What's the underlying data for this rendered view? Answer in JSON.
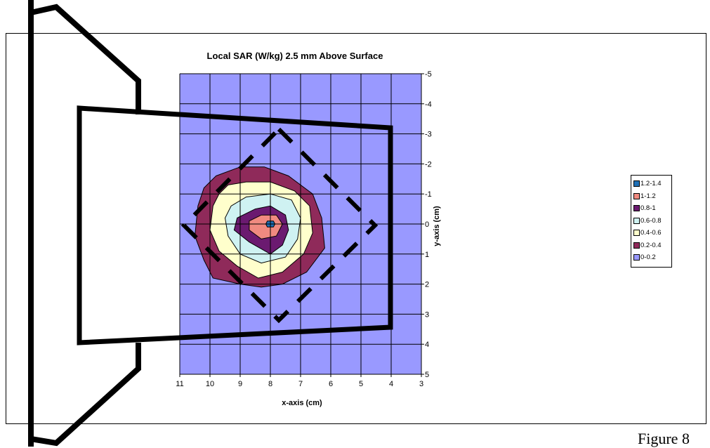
{
  "chart_data": {
    "type": "contour",
    "title": "Local SAR (W/kg) 2.5 mm Above Surface",
    "xlabel": "x-axis (cm)",
    "ylabel": "y-axis (cm)",
    "xlim": [
      11,
      3
    ],
    "ylim": [
      -5,
      5
    ],
    "x_ticks": [
      "11",
      "10",
      "9",
      "8",
      "7",
      "6",
      "5",
      "4",
      "3"
    ],
    "y_ticks": [
      "-5",
      "-4",
      "-3",
      "-2",
      "-1",
      "0",
      "1",
      "2",
      "3",
      "4",
      "5"
    ],
    "grid": true,
    "legend_position": "right",
    "levels": [
      {
        "label": "1.2-1.4",
        "color": "#1f6fb5"
      },
      {
        "label": "1-1.2",
        "color": "#f08a80"
      },
      {
        "label": "0.8-1",
        "color": "#6b1a70"
      },
      {
        "label": "0.6-0.8",
        "color": "#cff2f2"
      },
      {
        "label": "0.4-0.6",
        "color": "#ffffcc"
      },
      {
        "label": "0.2-0.4",
        "color": "#8f2a5a"
      },
      {
        "label": "0-0.2",
        "color": "#9999ff"
      }
    ],
    "peak": {
      "x": 8,
      "y": 0,
      "level": "1.2-1.4"
    },
    "contours": [
      {
        "level": "0.2-0.4",
        "points": [
          [
            9.8,
            -1.6
          ],
          [
            9,
            -1.9
          ],
          [
            8.2,
            -1.9
          ],
          [
            7.4,
            -1.6
          ],
          [
            6.6,
            -1
          ],
          [
            6.3,
            -0.2
          ],
          [
            6.2,
            0.8
          ],
          [
            6.8,
            1.6
          ],
          [
            7.6,
            2
          ],
          [
            8.3,
            2.1
          ],
          [
            9,
            2
          ],
          [
            9.9,
            1.8
          ],
          [
            10.2,
            1.2
          ],
          [
            10.5,
            0.4
          ],
          [
            10.4,
            -0.6
          ],
          [
            10.2,
            -1.2
          ]
        ]
      },
      {
        "level": "0.4-0.6",
        "points": [
          [
            9.4,
            -1.3
          ],
          [
            8.8,
            -1.4
          ],
          [
            8,
            -1.4
          ],
          [
            7.2,
            -1.1
          ],
          [
            6.7,
            -0.6
          ],
          [
            6.6,
            0.3
          ],
          [
            6.9,
            1
          ],
          [
            7.6,
            1.6
          ],
          [
            8.4,
            1.8
          ],
          [
            9.1,
            1.4
          ],
          [
            9.7,
            0.9
          ],
          [
            10,
            0.2
          ],
          [
            9.9,
            -0.6
          ],
          [
            9.7,
            -1
          ]
        ]
      },
      {
        "level": "0.6-0.8",
        "points": [
          [
            8.8,
            -0.9
          ],
          [
            8,
            -1
          ],
          [
            7.3,
            -0.8
          ],
          [
            7,
            -0.2
          ],
          [
            7.1,
            0.5
          ],
          [
            7.5,
            1.1
          ],
          [
            8.3,
            1.3
          ],
          [
            9,
            1
          ],
          [
            9.4,
            0.4
          ],
          [
            9.5,
            -0.2
          ],
          [
            9.3,
            -0.6
          ]
        ]
      },
      {
        "level": "0.8-1",
        "points": [
          [
            8.5,
            -0.5
          ],
          [
            8,
            -0.6
          ],
          [
            7.5,
            -0.3
          ],
          [
            7.4,
            0.2
          ],
          [
            7.6,
            0.7
          ],
          [
            8,
            1
          ],
          [
            8.7,
            0.6
          ],
          [
            9.2,
            0.2
          ],
          [
            9.1,
            -0.2
          ]
        ]
      },
      {
        "level": "1-1.2",
        "points": [
          [
            8.3,
            -0.3
          ],
          [
            7.8,
            -0.3
          ],
          [
            7.6,
            0
          ],
          [
            7.8,
            0.4
          ],
          [
            8.3,
            0.5
          ],
          [
            8.7,
            0.2
          ],
          [
            8.7,
            -0.1
          ]
        ]
      },
      {
        "level": "1.2-1.4",
        "points": [
          [
            8.1,
            -0.1
          ],
          [
            7.9,
            -0.1
          ],
          [
            7.85,
            0
          ],
          [
            7.9,
            0.1
          ],
          [
            8.1,
            0.1
          ],
          [
            8.15,
            0
          ]
        ]
      }
    ]
  },
  "figure": {
    "caption": "Figure 8"
  }
}
